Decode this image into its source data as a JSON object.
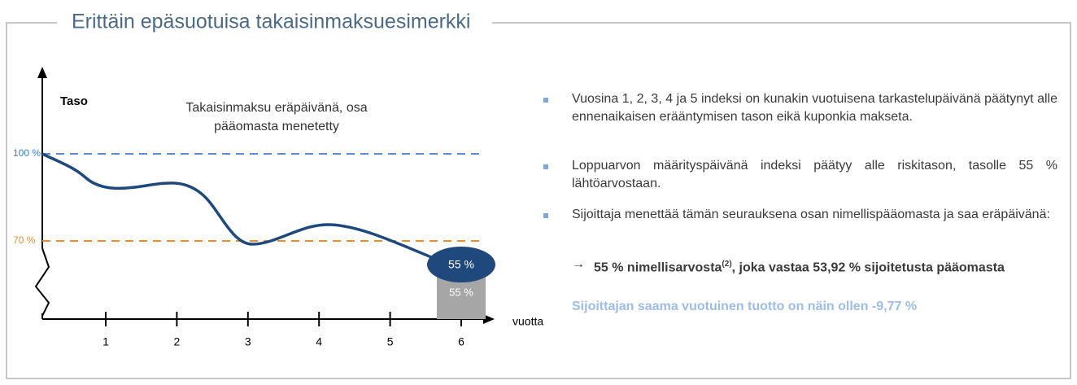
{
  "header": {
    "title": "Erittäin epäsuotuisa takaisinmaksuesimerkki"
  },
  "diagram": {
    "y_axis_label": "Taso",
    "x_axis_label": "vuotta",
    "annotation": [
      "Takaisinmaksu eräpäivänä, osa",
      "pääomasta menetetty"
    ],
    "level_labels": [
      "100 %",
      "70 %"
    ],
    "x_ticks": [
      "1",
      "2",
      "3",
      "4",
      "5",
      "6"
    ],
    "final_level": "55 %",
    "final_repayment": "55 %"
  },
  "bullets": [
    "Vuosina 1, 2, 3, 4 ja 5 indeksi on kunakin vuotuisena tarkastelupäivänä päätynyt alle ennenaikaisen erääntymisen tason eikä kuponkia makseta.",
    "Loppuarvon määrityspäivänä indeksi päätyy alle riskitason, tasolle 55 % lähtöarvostaan.",
    "Sijoittaja menettää tämän seurauksena osan nimellispääomasta ja saa eräpäivänä:"
  ],
  "result": {
    "arrow": "→",
    "text_before": "55 % nimellisarvosta",
    "footnote": "(2)",
    "text_after": ", joka vastaa 53,92 % sijoitetusta pääomasta"
  },
  "conclusion": "Sijoittajan saama vuotuinen tuotto on näin ollen -9,77 %"
}
